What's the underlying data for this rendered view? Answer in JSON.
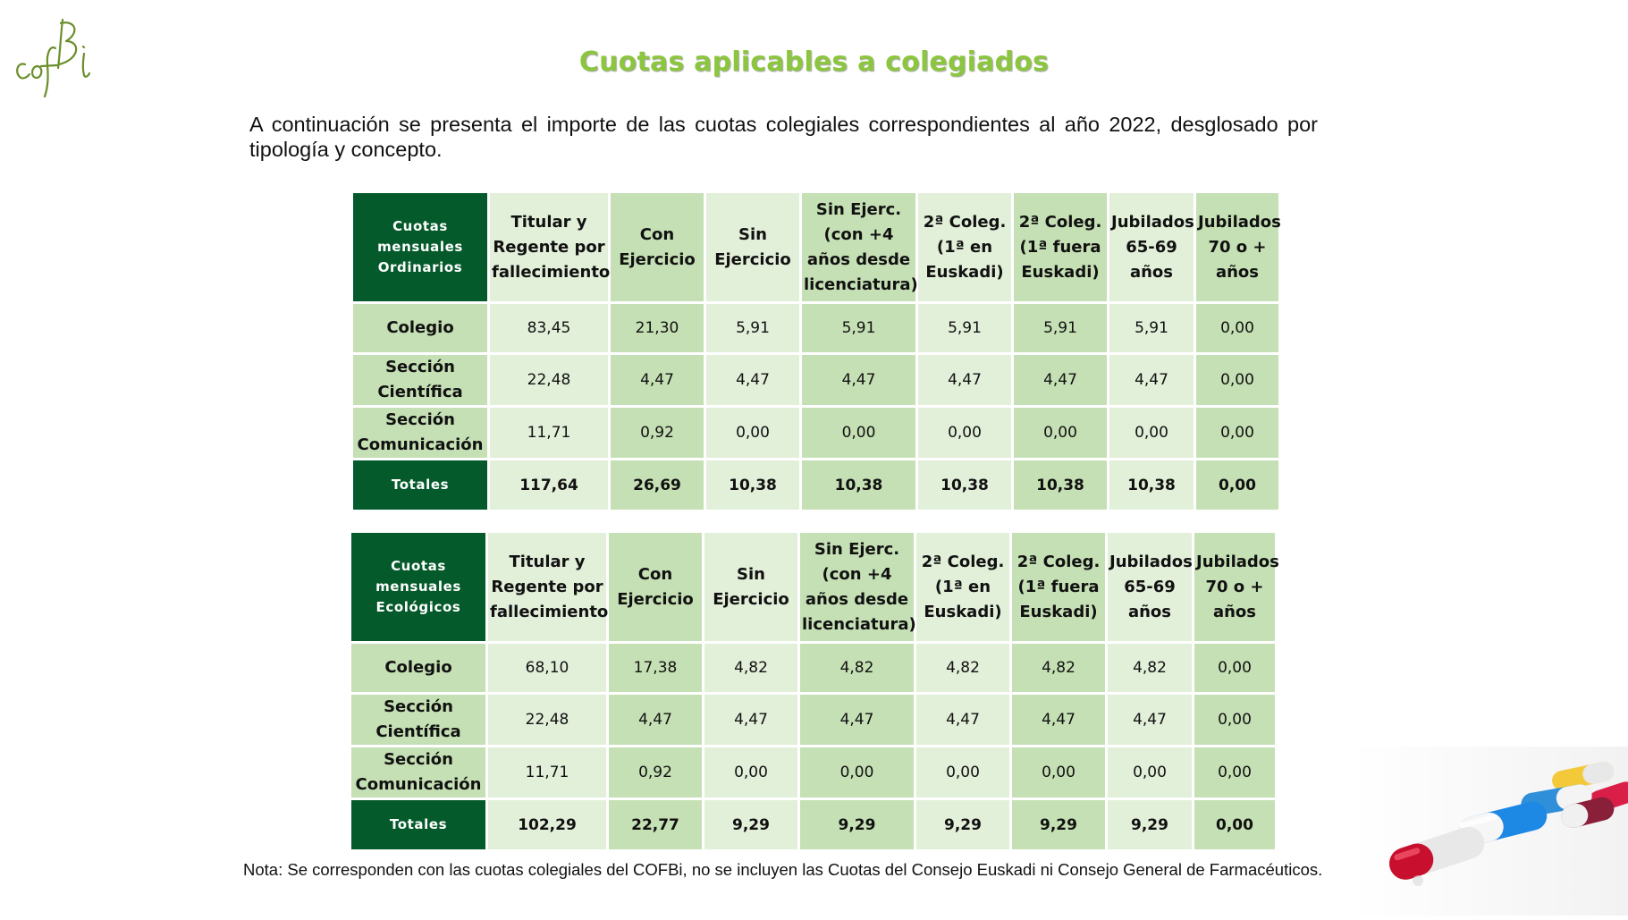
{
  "logo": {
    "text": "cofbi",
    "color": "#6a8f2a"
  },
  "title": "Cuotas aplicables a colegiados",
  "intro": "A continuación se presenta el importe de las cuotas colegiales correspondientes al año 2022, desglosado por tipología y concepto.",
  "colors": {
    "header_dark": "#045a2a",
    "title": "#8cc63f",
    "cell_dark": "#c5e0b4",
    "cell_light": "#e2efd9"
  },
  "columns": [
    "Titular y Regente por fallecimiento",
    "Con Ejercicio",
    "Sin Ejercicio",
    "Sin Ejerc. (con +4 años desde licenciatura)",
    "2ª Coleg. (1ª en Euskadi)",
    "2ª Coleg. (1ª fuera Euskadi)",
    "Jubilados 65-69 años",
    "Jubilados 70 o + años"
  ],
  "tables": [
    {
      "corner": "Cuotas mensuales Ordinarios",
      "rows": [
        {
          "label": "Colegio",
          "values": [
            "83,45",
            "21,30",
            "5,91",
            "5,91",
            "5,91",
            "5,91",
            "5,91",
            "0,00"
          ]
        },
        {
          "label": "Sección Científica",
          "values": [
            "22,48",
            "4,47",
            "4,47",
            "4,47",
            "4,47",
            "4,47",
            "4,47",
            "0,00"
          ]
        },
        {
          "label": "Sección Comunicación",
          "values": [
            "11,71",
            "0,92",
            "0,00",
            "0,00",
            "0,00",
            "0,00",
            "0,00",
            "0,00"
          ]
        }
      ],
      "totals": {
        "label": "Totales",
        "values": [
          "117,64",
          "26,69",
          "10,38",
          "10,38",
          "10,38",
          "10,38",
          "10,38",
          "0,00"
        ]
      }
    },
    {
      "corner": "Cuotas mensuales Ecológicos",
      "rows": [
        {
          "label": "Colegio",
          "values": [
            "68,10",
            "17,38",
            "4,82",
            "4,82",
            "4,82",
            "4,82",
            "4,82",
            "0,00"
          ]
        },
        {
          "label": "Sección Científica",
          "values": [
            "22,48",
            "4,47",
            "4,47",
            "4,47",
            "4,47",
            "4,47",
            "4,47",
            "0,00"
          ]
        },
        {
          "label": "Sección Comunicación",
          "values": [
            "11,71",
            "0,92",
            "0,00",
            "0,00",
            "0,00",
            "0,00",
            "0,00",
            "0,00"
          ]
        }
      ],
      "totals": {
        "label": "Totales",
        "values": [
          "102,29",
          "22,77",
          "9,29",
          "9,29",
          "9,29",
          "9,29",
          "9,29",
          "0,00"
        ]
      }
    }
  ],
  "footnote": "Nota: Se corresponden con las cuotas colegiales del COFBi, no se incluyen las Cuotas del Consejo Euskadi ni Consejo General de Farmacéuticos.",
  "decoration": {
    "image": "pills-image",
    "description_icon": "pills-icon"
  }
}
